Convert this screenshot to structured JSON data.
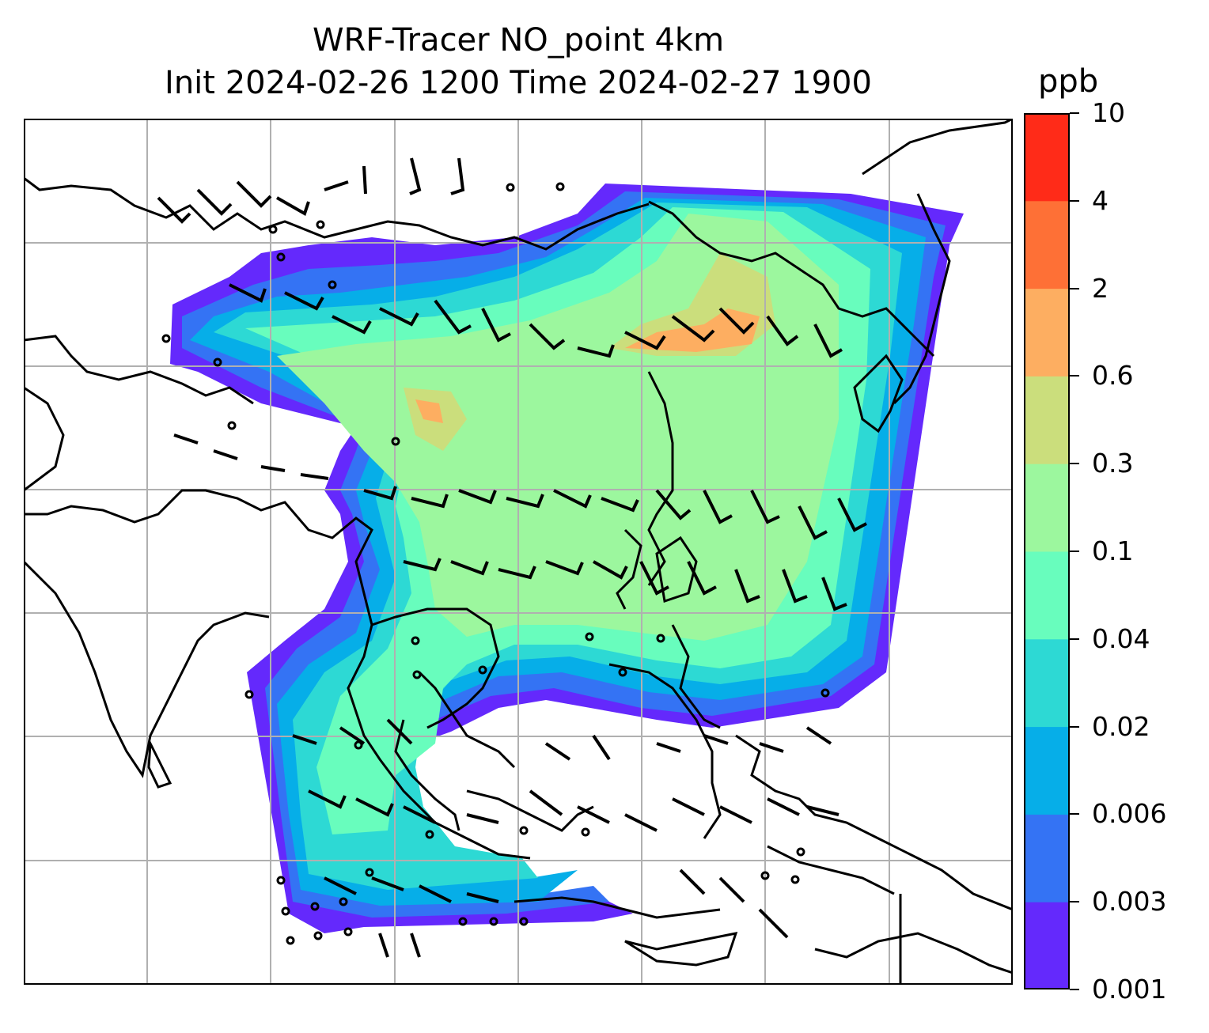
{
  "title": {
    "line1": "WRF-Tracer NO_point 4km",
    "line2": "Init 2024-02-26 1200 Time 2024-02-27 1900"
  },
  "colorbar": {
    "unit": "ppb",
    "levels": [
      "0.001",
      "0.003",
      "0.006",
      "0.02",
      "0.04",
      "0.1",
      "0.3",
      "0.6",
      "2",
      "4",
      "10"
    ],
    "colors": [
      "#6429fc",
      "#3473f4",
      "#06aee8",
      "#2dd9d4",
      "#68fdbd",
      "#9cf79e",
      "#cbde7c",
      "#fdae61",
      "#fe7036",
      "#ff2b18"
    ]
  },
  "map": {
    "field": "NO_point tracer concentration with wind barbs",
    "gridlines": true,
    "coastlines": true,
    "wind_barbs": true
  }
}
